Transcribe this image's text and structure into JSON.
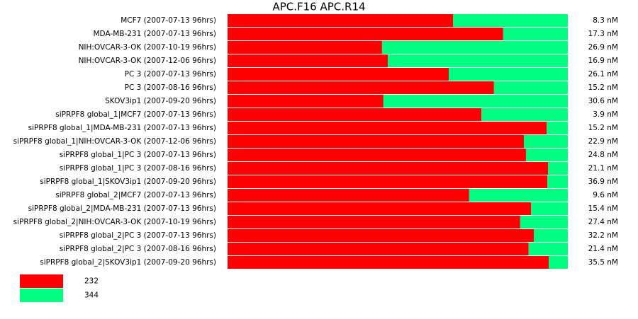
{
  "chart_data": {
    "type": "bar",
    "stacked": true,
    "orientation": "horizontal",
    "title": "APC.F16  APC.R14",
    "categories": [
      "MCF7 (2007-07-13 96hrs)",
      "MDA-MB-231 (2007-07-13 96hrs)",
      "NIH:OVCAR-3-OK (2007-10-19 96hrs)",
      "NIH:OVCAR-3-OK (2007-12-06 96hrs)",
      "PC 3 (2007-07-13 96hrs)",
      "PC 3 (2007-08-16 96hrs)",
      "SKOV3ip1 (2007-09-20 96hrs)",
      "siPRPF8 global_1|MCF7 (2007-07-13 96hrs)",
      "siPRPF8 global_1|MDA-MB-231 (2007-07-13 96hrs)",
      "siPRPF8 global_1|NIH:OVCAR-3-OK (2007-12-06 96hrs)",
      "siPRPF8 global_1|PC 3 (2007-07-13 96hrs)",
      "siPRPF8 global_1|PC 3 (2007-08-16 96hrs)",
      "siPRPF8 global_1|SKOV3ip1 (2007-09-20 96hrs)",
      "siPRPF8 global_2|MCF7 (2007-07-13 96hrs)",
      "siPRPF8 global_2|MDA-MB-231 (2007-07-13 96hrs)",
      "siPRPF8 global_2|NIH:OVCAR-3-OK (2007-10-19 96hrs)",
      "siPRPF8 global_2|PC 3 (2007-07-13 96hrs)",
      "siPRPF8 global_2|PC 3 (2007-08-16 96hrs)",
      "siPRPF8 global_2|SKOV3ip1 (2007-09-20 96hrs)"
    ],
    "row_labels": [
      "8.3 nM",
      "17.3 nM",
      "26.9 nM",
      "16.9 nM",
      "26.1 nM",
      "15.2 nM",
      "30.6 nM",
      "3.9 nM",
      "15.2 nM",
      "22.9 nM",
      "24.8 nM",
      "21.1 nM",
      "36.9 nM",
      "9.6 nM",
      "15.4 nM",
      "27.4 nM",
      "32.2 nM",
      "21.4 nM",
      "35.5 nM"
    ],
    "series": [
      {
        "name": "232",
        "color": "#ff0000",
        "values": [
          66.3,
          81.0,
          45.4,
          47.1,
          65.0,
          78.3,
          45.8,
          74.6,
          93.8,
          87.1,
          87.7,
          94.2,
          94.0,
          71.0,
          89.2,
          86.0,
          90.0,
          88.5,
          94.4
        ]
      },
      {
        "name": "344",
        "color": "#00ff80",
        "values": [
          33.7,
          19.0,
          54.6,
          52.9,
          35.0,
          21.7,
          54.2,
          25.4,
          6.2,
          12.9,
          12.3,
          5.8,
          6.0,
          29.0,
          10.8,
          14.0,
          10.0,
          11.5,
          5.6
        ]
      }
    ]
  }
}
